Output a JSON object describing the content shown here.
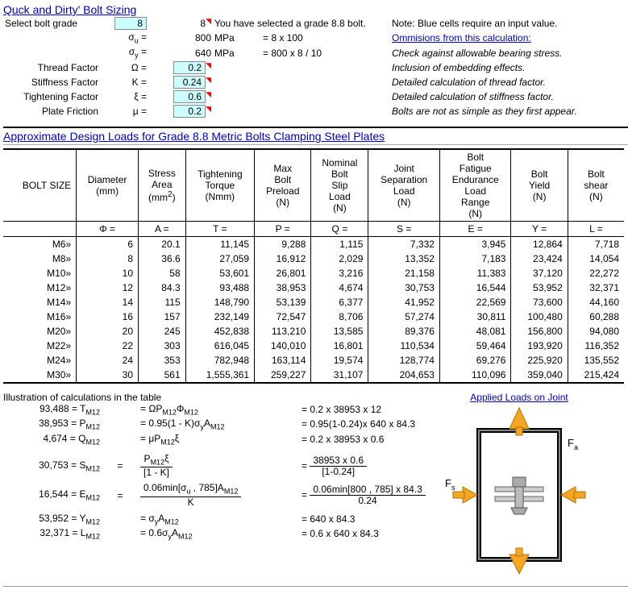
{
  "title": "Quck and Dirty' Bolt Sizing",
  "top": {
    "select_label": "Select bolt grade",
    "grade_in": "8",
    "grade_calc": "8",
    "selected_text": "You have selected a grade 8.8 bolt.",
    "note": "Note: Blue cells require an input value.",
    "omissions_title": "Ommisions from this calculation:",
    "rows": [
      {
        "l": "",
        "s": "σu =",
        "v": "800",
        "u": "MPa",
        "f": "= 8 x 100",
        "om": "Check against allowable bearing stress."
      },
      {
        "l": "",
        "s": "σy =",
        "v": "640",
        "u": "MPa",
        "f": "= 800 x 8 / 10",
        "om": "Inclusion of embedding effects."
      },
      {
        "l": "Thread Factor",
        "s": "Ω =",
        "v": "0.2",
        "u": "",
        "f": "",
        "om": "Detailed calculation of thread factor.",
        "input": true
      },
      {
        "l": "Stiffness Factor",
        "s": "K =",
        "v": "0.24",
        "u": "",
        "f": "",
        "om": "Detailed calculation of stiffness factor.",
        "input": true
      },
      {
        "l": "Tightening Factor",
        "s": "ξ =",
        "v": "0.6",
        "u": "",
        "f": "",
        "om": "Bolts are not as simple as they first appear.",
        "input": true
      },
      {
        "l": "Plate Friction",
        "s": "μ =",
        "v": "0.2",
        "u": "",
        "f": "",
        "om": "",
        "input": true
      }
    ]
  },
  "section2_title": "Approximate Design Loads for Grade 8.8 Metric Bolts Clamping Steel Plates",
  "columns": [
    "BOLT SIZE",
    "Diameter (mm)",
    "Stress Area (mm2)",
    "Tightening Torque (Nmm)",
    "Max Bolt Preload (N)",
    "Nominal Bolt Slip Load (N)",
    "Joint Separation Load (N)",
    "Bolt Fatigue Endurance Load Range (N)",
    "Bolt Yield (N)",
    "Bolt shear (N)"
  ],
  "symbols": [
    "",
    "Φ =",
    "A =",
    "T =",
    "P =",
    "Q =",
    "S =",
    "E =",
    "Y =",
    "L ="
  ],
  "rows": [
    [
      "M6»",
      "6",
      "20.1",
      "11,145",
      "9,288",
      "1,115",
      "7,332",
      "3,945",
      "12,864",
      "7,718"
    ],
    [
      "M8»",
      "8",
      "36.6",
      "27,059",
      "16,912",
      "2,029",
      "13,352",
      "7,183",
      "23,424",
      "14,054"
    ],
    [
      "M10»",
      "10",
      "58",
      "53,601",
      "26,801",
      "3,216",
      "21,158",
      "11,383",
      "37,120",
      "22,272"
    ],
    [
      "M12»",
      "12",
      "84.3",
      "93,488",
      "38,953",
      "4,674",
      "30,753",
      "16,544",
      "53,952",
      "32,371"
    ],
    [
      "M14»",
      "14",
      "115",
      "148,790",
      "53,139",
      "6,377",
      "41,952",
      "22,569",
      "73,600",
      "44,160"
    ],
    [
      "M16»",
      "16",
      "157",
      "232,149",
      "72,547",
      "8,706",
      "57,274",
      "30,811",
      "100,480",
      "60,288"
    ],
    [
      "M20»",
      "20",
      "245",
      "452,838",
      "113,210",
      "13,585",
      "89,376",
      "48,081",
      "156,800",
      "94,080"
    ],
    [
      "M22»",
      "22",
      "303",
      "616,045",
      "140,010",
      "16,801",
      "110,534",
      "59,464",
      "193,920",
      "116,352"
    ],
    [
      "M24»",
      "24",
      "353",
      "782,948",
      "163,114",
      "19,574",
      "128,774",
      "69,276",
      "225,920",
      "135,552"
    ],
    [
      "M30»",
      "30",
      "561",
      "1,555,361",
      "259,227",
      "31,107",
      "204,653",
      "110,096",
      "359,040",
      "215,424"
    ]
  ],
  "illus_title": "Illustration of calculations in the table",
  "calcs": [
    {
      "lhs": "93,488 = T",
      "sub": "M12",
      "mid": "= ΩP",
      "midtail": "Φ",
      "rhs": "= 0.2 x 38953 x 12"
    },
    {
      "lhs": "38,953 = P",
      "sub": "M12",
      "mid": "= 0.95(1 - K)σyA",
      "rhs": "= 0.95(1-0.24)x 640 x 84.3"
    },
    {
      "lhs": "4,674 = Q",
      "sub": "M12",
      "mid": "= μP ξ",
      "rhs": "= 0.2 x 38953 x 0.6"
    }
  ],
  "calc_s": {
    "lhs": "30,753 = S",
    "sub": "M12",
    "num": "P     ξ",
    "den": "[1 - K]",
    "rnum": "38953 x 0.6",
    "rden": "[1-0.24]"
  },
  "calc_e": {
    "lhs": "16,544 = E",
    "sub": "M12",
    "num": "0.06min[σu , 785]A",
    "den": "K",
    "rnum": "0.06min[800 , 785] x 84.3",
    "rden": "0.24"
  },
  "calc_y": {
    "lhs": "53,952 = Y",
    "sub": "M12",
    "mid": "= σyA",
    "rhs": "= 640 x 84.3"
  },
  "calc_l": {
    "lhs": "32,371 = L",
    "sub": "M12",
    "mid": "= 0.6σyA",
    "rhs": "= 0.6 x 640 x 84.3"
  },
  "diagram_title": "Applied Loads on Joint",
  "diagram": {
    "fa": "Fa",
    "fs": "Fs"
  }
}
